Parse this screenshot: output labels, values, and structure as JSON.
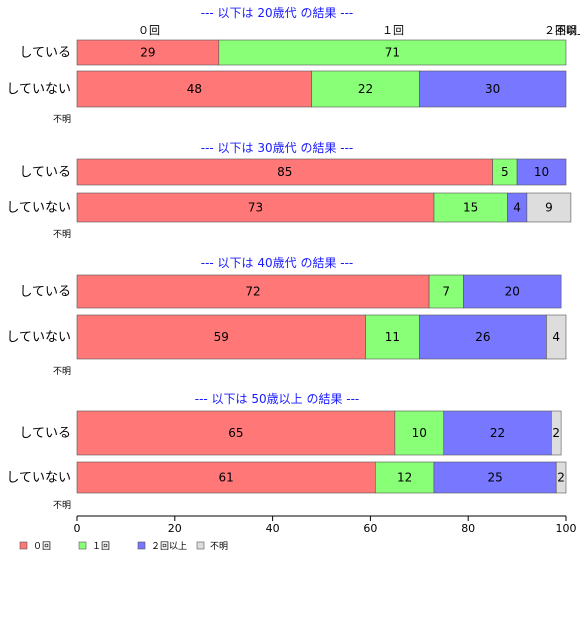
{
  "chart_data": {
    "type": "bar",
    "orientation": "horizontal",
    "stacked": true,
    "xlim": [
      0,
      100
    ],
    "x_ticks": [
      0,
      20,
      40,
      60,
      80,
      100
    ],
    "top_labels": [
      "０回",
      "１回",
      "２回以上",
      "不明"
    ],
    "series": [
      {
        "name": "０回",
        "color": "#ff7777"
      },
      {
        "name": "１回",
        "color": "#88ff77"
      },
      {
        "name": "２回以上",
        "color": "#7777ff"
      },
      {
        "name": "不明",
        "color": "#dddddd"
      }
    ],
    "unknown_label": "不明",
    "groups": [
      {
        "title": "--- 以下は 20歳代 の結果 ---",
        "bars": [
          {
            "label": "している",
            "values": [
              29,
              71,
              0,
              0
            ]
          },
          {
            "label": "していない",
            "values": [
              48,
              22,
              30,
              0
            ]
          }
        ]
      },
      {
        "title": "--- 以下は 30歳代 の結果 ---",
        "bars": [
          {
            "label": "している",
            "values": [
              85,
              5,
              10,
              0
            ]
          },
          {
            "label": "していない",
            "values": [
              73,
              15,
              4,
              9
            ]
          }
        ]
      },
      {
        "title": "--- 以下は 40歳代 の結果 ---",
        "bars": [
          {
            "label": "している",
            "values": [
              72,
              7,
              20,
              0
            ]
          },
          {
            "label": "していない",
            "values": [
              59,
              11,
              26,
              4
            ]
          }
        ]
      },
      {
        "title": "--- 以下は 50歳以上 の結果 ---",
        "bars": [
          {
            "label": "している",
            "values": [
              65,
              10,
              22,
              2
            ]
          },
          {
            "label": "していない",
            "values": [
              61,
              12,
              25,
              2
            ]
          }
        ]
      }
    ]
  }
}
